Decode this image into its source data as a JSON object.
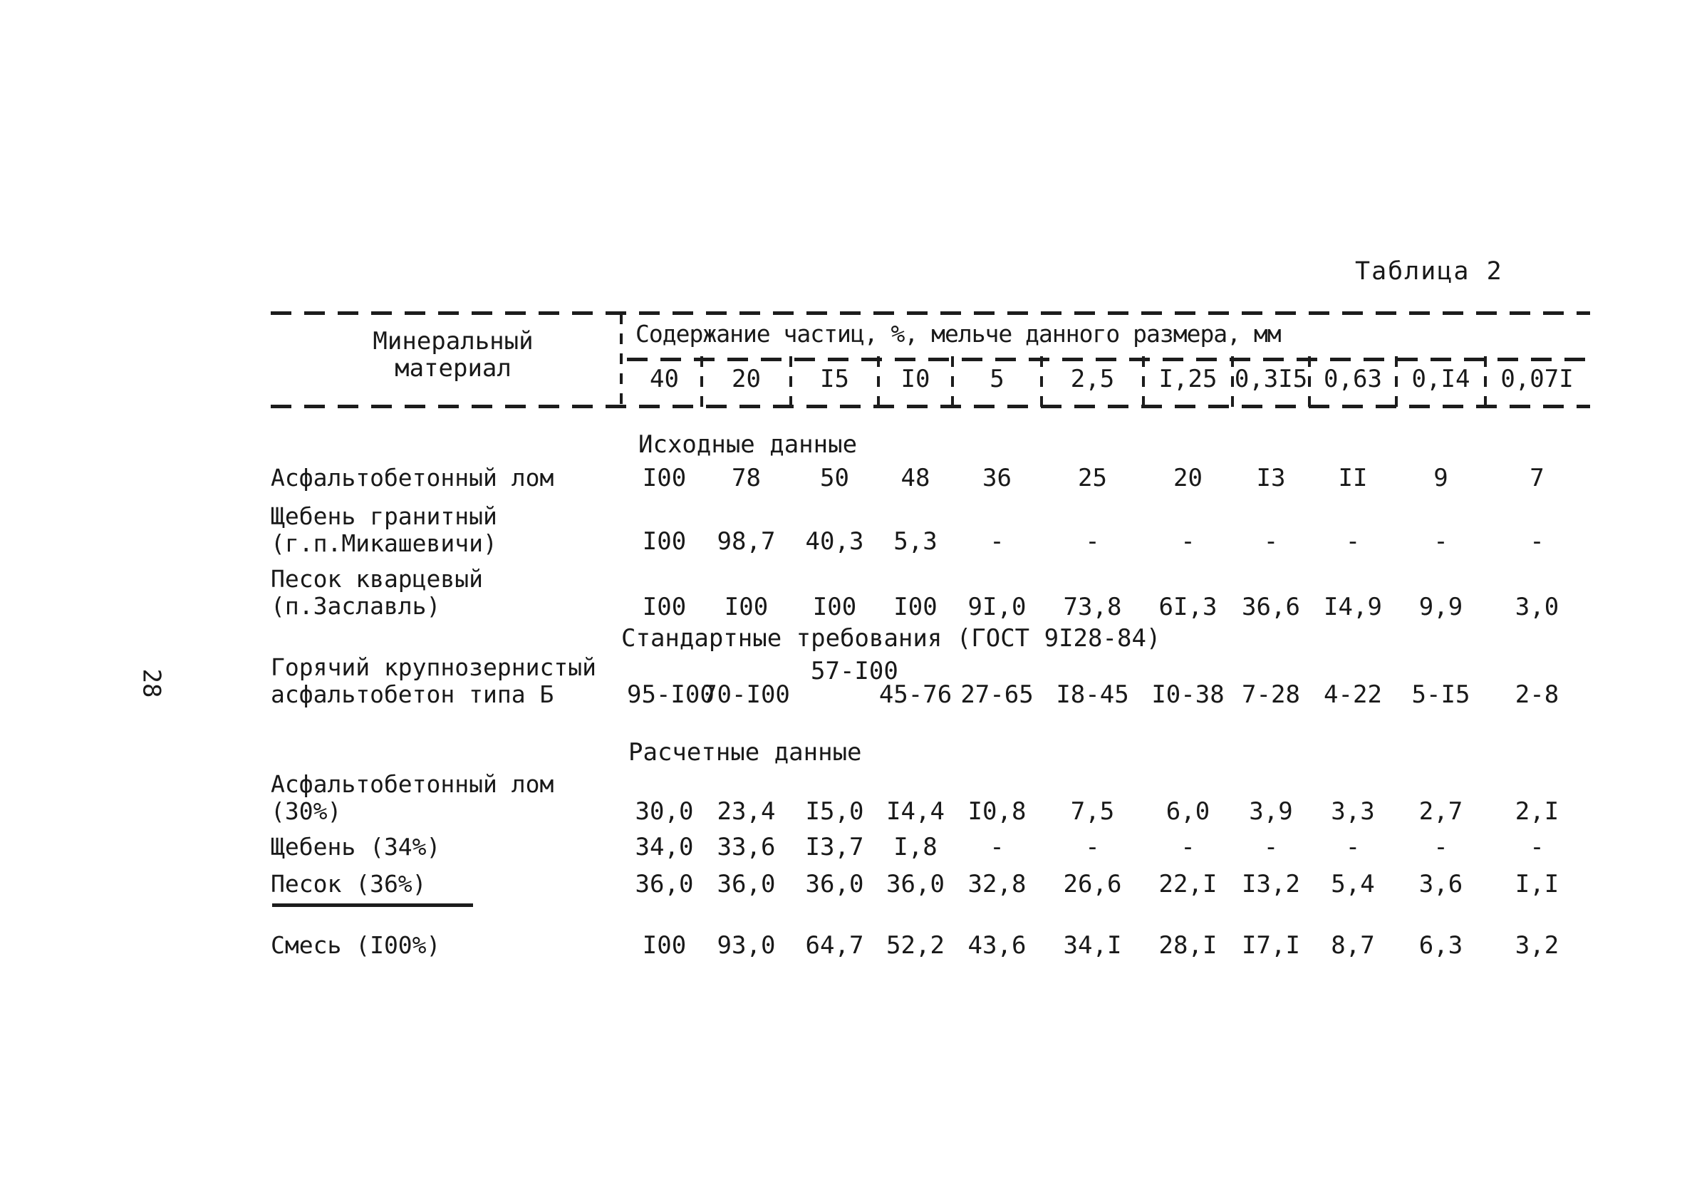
{
  "page": {
    "title": "Таблица 2",
    "number": "28"
  },
  "table": {
    "header": {
      "material_line1": "Минеральный",
      "material_line2": "материал",
      "content_label": "Содержание частиц, %, мельче данного размера, мм",
      "size_columns": [
        "40",
        "20",
        "I5",
        "I0",
        "5",
        "2,5",
        "I,25",
        "0,3I5",
        "0,63",
        "0,I4",
        "0,07I"
      ]
    },
    "body": [
      {
        "type": "section",
        "text": "Исходные данные"
      },
      {
        "type": "row",
        "label_lines": [
          "Асфальтобетонный лом"
        ],
        "values": [
          "I00",
          "78",
          "50",
          "48",
          "36",
          "25",
          "20",
          "I3",
          "II",
          "9",
          "7"
        ]
      },
      {
        "type": "row",
        "label_lines": [
          "Щебень гранитный",
          "(г.п.Микашевичи)"
        ],
        "values": [
          "I00",
          "98,7",
          "40,3",
          "5,3",
          "-",
          "-",
          "-",
          "-",
          "-",
          "-",
          "-"
        ]
      },
      {
        "type": "row",
        "label_lines": [
          "Песок кварцевый",
          "(п.Заславль)"
        ],
        "values": [
          "I00",
          "I00",
          "I00",
          "I00",
          "9I,0",
          "73,8",
          "6I,3",
          "36,6",
          "I4,9",
          "9,9",
          "3,0"
        ]
      },
      {
        "type": "section",
        "text": "Стандартные требования (ГОСТ 9I28-84)"
      },
      {
        "type": "row",
        "label_lines": [
          "Горячий крупнозернистый",
          "асфальтобетон типа Б"
        ],
        "raised_value": "57-I00",
        "values": [
          "95-I00",
          "70-I00",
          "",
          "45-76",
          "27-65",
          "I8-45",
          "I0-38",
          "7-28",
          "4-22",
          "5-I5",
          "2-8"
        ]
      },
      {
        "type": "section",
        "text": "Расчетные данные"
      },
      {
        "type": "row",
        "label_lines": [
          "Асфальтобетонный лом",
          "(30%)"
        ],
        "values": [
          "30,0",
          "23,4",
          "I5,0",
          "I4,4",
          "I0,8",
          "7,5",
          "6,0",
          "3,9",
          "3,3",
          "2,7",
          "2,I"
        ]
      },
      {
        "type": "row",
        "label_lines": [
          "Щебень (34%)"
        ],
        "values": [
          "34,0",
          "33,6",
          "I3,7",
          "I,8",
          "-",
          "-",
          "-",
          "-",
          "-",
          "-",
          "-"
        ]
      },
      {
        "type": "row",
        "label_lines": [
          "Песок (36%)"
        ],
        "values": [
          "36,0",
          "36,0",
          "36,0",
          "36,0",
          "32,8",
          "26,6",
          "22,I",
          "I3,2",
          "5,4",
          "3,6",
          "I,I"
        ]
      },
      {
        "type": "divider"
      },
      {
        "type": "row",
        "label_lines": [
          "Смесь (I00%)"
        ],
        "values": [
          "I00",
          "93,0",
          "64,7",
          "52,2",
          "43,6",
          "34,I",
          "28,I",
          "I7,I",
          "8,7",
          "6,3",
          "3,2"
        ]
      }
    ]
  }
}
